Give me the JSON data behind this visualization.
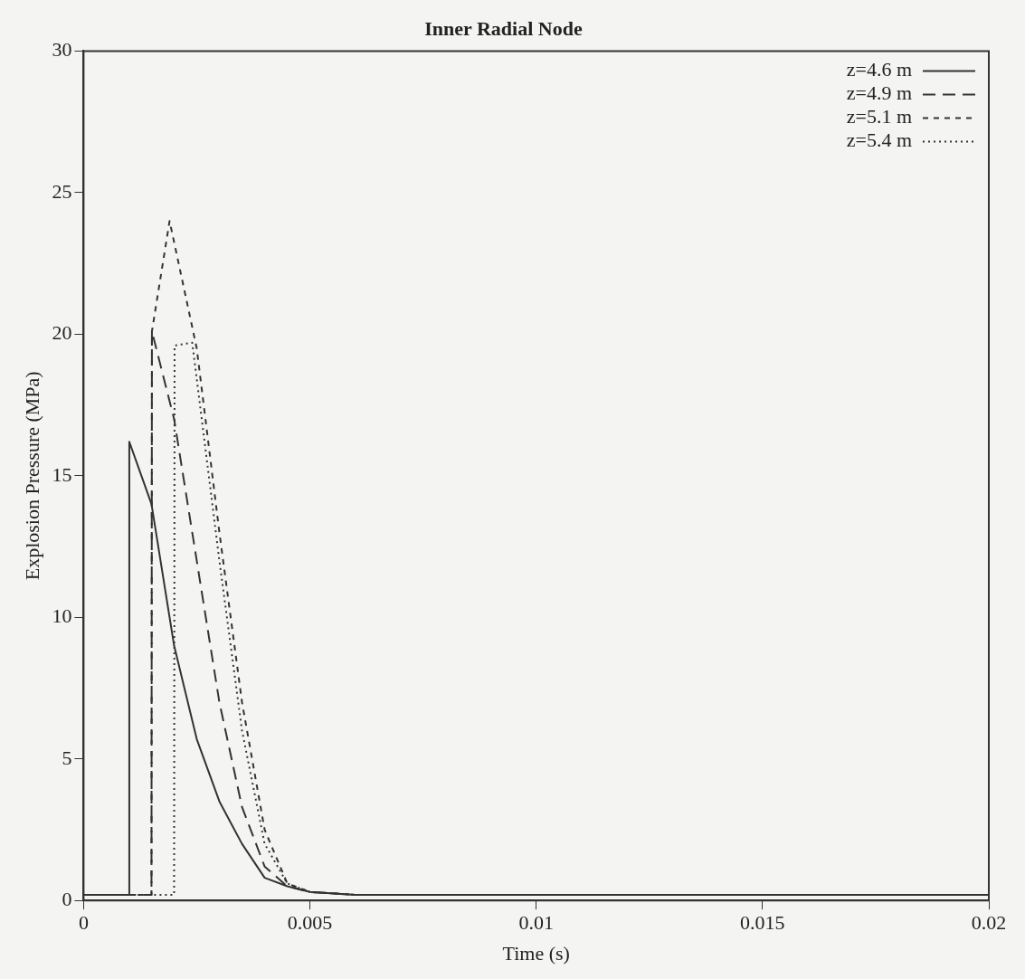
{
  "chart_data": {
    "type": "line",
    "title": "Inner Radial Node",
    "xlabel": "Time (s)",
    "ylabel": "Explosion Pressure (MPa)",
    "xlim": [
      0,
      0.02
    ],
    "xticks": [
      0,
      0.005,
      0.01,
      0.015,
      0.02
    ],
    "ylim": [
      0,
      30
    ],
    "yticks": [
      0,
      5,
      10,
      15,
      20,
      25,
      30
    ],
    "grid": false,
    "legend": "top right",
    "marker": "none",
    "series": [
      {
        "name": "z=4.6 m",
        "color": "#333333",
        "line_style": "solid",
        "x": [
          0,
          0.001,
          0.00101,
          0.0015,
          0.002,
          0.0025,
          0.003,
          0.0035,
          0.004,
          0.0045,
          0.005,
          0.006,
          0.01,
          0.015,
          0.02
        ],
        "values": [
          0.2,
          0.2,
          16.2,
          14,
          9,
          5.7,
          3.5,
          2,
          0.8,
          0.5,
          0.3,
          0.2,
          0.2,
          0.2,
          0.2
        ]
      },
      {
        "name": "z=4.9 m",
        "color": "#333333",
        "line_style": "dashed",
        "x": [
          0,
          0.0015,
          0.00151,
          0.002,
          0.0025,
          0.003,
          0.0035,
          0.004,
          0.0045,
          0.005,
          0.006,
          0.01,
          0.015,
          0.02
        ],
        "values": [
          0.2,
          0.2,
          20.1,
          17,
          12,
          7,
          3.3,
          1.2,
          0.5,
          0.3,
          0.2,
          0.2,
          0.2,
          0.2
        ]
      },
      {
        "name": "z=5.1 m",
        "color": "#333333",
        "line_style": "dashed_short",
        "x": [
          0,
          0.0015,
          0.00151,
          0.0019,
          0.0025,
          0.003,
          0.0035,
          0.004,
          0.0045,
          0.005,
          0.006,
          0.01,
          0.015,
          0.02
        ],
        "values": [
          0.2,
          0.2,
          20.1,
          24,
          19.5,
          13,
          7,
          2.5,
          0.6,
          0.3,
          0.2,
          0.2,
          0.2,
          0.2
        ]
      },
      {
        "name": "z=5.4 m",
        "color": "#333333",
        "line_style": "dotted",
        "x": [
          0,
          0.002,
          0.00201,
          0.0024,
          0.003,
          0.0035,
          0.004,
          0.0045,
          0.005,
          0.006,
          0.01,
          0.015,
          0.02
        ],
        "values": [
          0.2,
          0.2,
          19.6,
          19.7,
          12,
          6,
          2,
          0.6,
          0.3,
          0.2,
          0.2,
          0.2,
          0.2
        ]
      }
    ]
  }
}
